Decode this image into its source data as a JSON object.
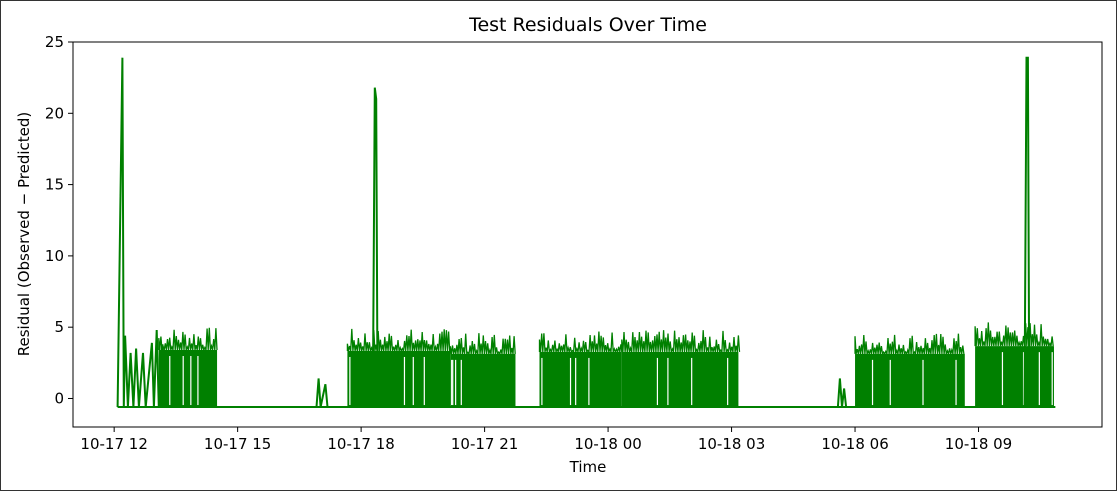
{
  "chart_data": {
    "type": "line",
    "title": "Test Residuals Over Time",
    "xlabel": "Time",
    "ylabel": "Residual (Observed − Predicted)",
    "x_start": "2024-10-17 11:00",
    "x_end": "2024-10-18 12:00",
    "ylim": [
      -2,
      25
    ],
    "x_ticks": [
      {
        "label": "10-17 12",
        "t": "2024-10-17 12:00"
      },
      {
        "label": "10-17 15",
        "t": "2024-10-17 15:00"
      },
      {
        "label": "10-17 18",
        "t": "2024-10-17 18:00"
      },
      {
        "label": "10-17 21",
        "t": "2024-10-17 21:00"
      },
      {
        "label": "10-18 00",
        "t": "2024-10-18 00:00"
      },
      {
        "label": "10-18 03",
        "t": "2024-10-18 03:00"
      },
      {
        "label": "10-18 06",
        "t": "2024-10-18 06:00"
      },
      {
        "label": "10-18 09",
        "t": "2024-10-18 09:00"
      }
    ],
    "y_ticks": [
      0,
      5,
      10,
      15,
      20,
      25
    ],
    "color": "#008000",
    "grid": false,
    "baseline": -0.6,
    "dense_blocks": [
      {
        "start": "2024-10-17 13:05",
        "end": "2024-10-17 14:30",
        "peak": 5.0
      },
      {
        "start": "2024-10-17 17:40",
        "end": "2024-10-17 20:10",
        "peak": 4.9
      },
      {
        "start": "2024-10-17 20:10",
        "end": "2024-10-17 21:45",
        "peak": 4.6
      },
      {
        "start": "2024-10-17 22:20",
        "end": "2024-10-18 00:20",
        "peak": 4.8
      },
      {
        "start": "2024-10-18 00:20",
        "end": "2024-10-18 03:10",
        "peak": 4.8
      },
      {
        "start": "2024-10-18 06:00",
        "end": "2024-10-18 08:40",
        "peak": 4.6
      },
      {
        "start": "2024-10-18 08:55",
        "end": "2024-10-18 10:50",
        "peak": 5.4
      }
    ],
    "series": [
      {
        "points": [
          [
            "2024-10-17 12:05",
            -0.6
          ],
          [
            "2024-10-17 12:12",
            23.9
          ],
          [
            "2024-10-17 12:14",
            -0.6
          ],
          [
            "2024-10-17 12:16",
            4.4
          ],
          [
            "2024-10-17 12:20",
            -0.6
          ],
          [
            "2024-10-17 12:24",
            3.2
          ],
          [
            "2024-10-17 12:28",
            -0.6
          ],
          [
            "2024-10-17 12:32",
            3.5
          ],
          [
            "2024-10-17 12:36",
            -0.6
          ],
          [
            "2024-10-17 12:42",
            3.2
          ],
          [
            "2024-10-17 12:46",
            -0.6
          ],
          [
            "2024-10-17 12:55",
            3.9
          ],
          [
            "2024-10-17 12:58",
            -0.6
          ],
          [
            "2024-10-17 13:02",
            4.8
          ],
          [
            "2024-10-17 13:05",
            -0.6
          ],
          [
            "2024-10-17 13:10",
            3.8
          ],
          [
            "2024-10-17 13:14",
            -0.6
          ],
          [
            "2024-10-17 16:55",
            -0.6
          ],
          [
            "2024-10-17 16:58",
            1.4
          ],
          [
            "2024-10-17 17:01",
            -0.6
          ],
          [
            "2024-10-17 17:08",
            1.0
          ],
          [
            "2024-10-17 17:11",
            -0.6
          ],
          [
            "2024-10-17 18:17",
            -0.6
          ],
          [
            "2024-10-17 18:20",
            21.8
          ],
          [
            "2024-10-17 18:22",
            21.0
          ],
          [
            "2024-10-17 18:24",
            -0.6
          ],
          [
            "2024-10-18 05:35",
            -0.6
          ],
          [
            "2024-10-18 05:38",
            1.4
          ],
          [
            "2024-10-18 05:41",
            -0.6
          ],
          [
            "2024-10-18 05:44",
            0.7
          ],
          [
            "2024-10-18 05:47",
            -0.6
          ],
          [
            "2024-10-18 10:07",
            -0.6
          ],
          [
            "2024-10-18 10:10",
            23.9
          ],
          [
            "2024-10-18 10:12",
            23.9
          ],
          [
            "2024-10-18 10:14",
            -0.6
          ]
        ]
      }
    ]
  }
}
